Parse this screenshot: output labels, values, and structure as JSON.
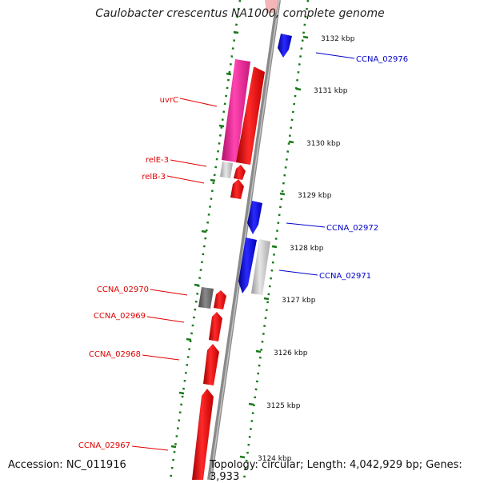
{
  "title": "Caulobacter crescentus NA1000, complete genome",
  "footer": {
    "accession": "Accession: NC_011916",
    "summary": "Topology: circular; Length: 4,042,929 bp; Genes: 3,933"
  },
  "colors": {
    "forward_gene": "#ff0000",
    "reverse_gene": "#0000ff",
    "rrna_gene": "#ee2a9a",
    "pseudo_light": "#c8c8c8",
    "pseudo_dark": "#6e6e6e",
    "backbone": "#8a8a8a",
    "ruler": "#1a7a1a"
  },
  "ticks": [
    {
      "label": "3132 kbp"
    },
    {
      "label": "3131 kbp"
    },
    {
      "label": "3130 kbp"
    },
    {
      "label": "3129 kbp"
    },
    {
      "label": "3128 kbp"
    },
    {
      "label": "3127 kbp"
    },
    {
      "label": "3126 kbp"
    },
    {
      "label": "3125 kbp"
    },
    {
      "label": "3124 kbp"
    }
  ],
  "left_labels": [
    {
      "text": "uvrC"
    },
    {
      "text": "relE-3"
    },
    {
      "text": "relB-3"
    },
    {
      "text": "CCNA_02970"
    },
    {
      "text": "CCNA_02969"
    },
    {
      "text": "CCNA_02968"
    },
    {
      "text": "CCNA_02967"
    }
  ],
  "right_labels": [
    {
      "text": "CCNA_02976"
    },
    {
      "text": "CCNA_02972"
    },
    {
      "text": "CCNA_02971"
    }
  ]
}
